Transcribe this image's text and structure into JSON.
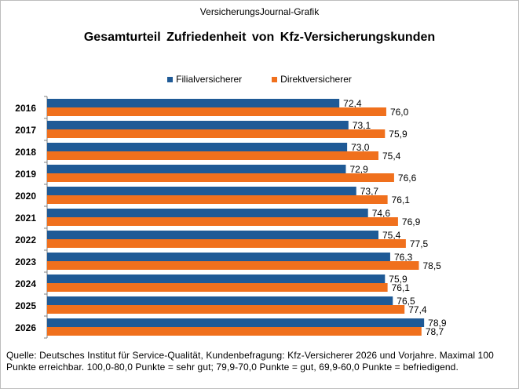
{
  "header": {
    "source_label": "VersicherungsJournal-Grafik",
    "title": "Gesamturteil Zufriedenheit von Kfz-Versicherungskunden"
  },
  "footer": {
    "note": "Quelle: Deutsches Institut für Service-Qualität, Kundenbefragung: Kfz-Versicherer 2026 und Vorjahre. Maximal 100 Punkte erreichbar. 100,0-80,0 Punkte = sehr gut; 79,9-70,0 Punkte = gut, 69,9-60,0 Punkte = befriedigend."
  },
  "colors": {
    "Filialversicherer": "#1f5a96",
    "Direktversicherer": "#f0701d"
  },
  "chart_data": {
    "type": "bar",
    "orientation": "horizontal",
    "title": "Gesamturteil Zufriedenheit von Kfz-Versicherungskunden",
    "categories": [
      "2016",
      "2017",
      "2018",
      "2019",
      "2020",
      "2021",
      "2022",
      "2023",
      "2024",
      "2025",
      "2026"
    ],
    "series": [
      {
        "name": "Filialversicherer",
        "values": [
          72.4,
          73.1,
          73.0,
          72.9,
          73.7,
          74.6,
          75.4,
          76.3,
          75.9,
          76.5,
          78.9
        ],
        "labels": [
          "72,4",
          "73,1",
          "73,0",
          "72,9",
          "73,7",
          "74,6",
          "75,4",
          "76,3",
          "75,9",
          "76,5",
          "78,9"
        ]
      },
      {
        "name": "Direktversicherer",
        "values": [
          76.0,
          75.9,
          75.4,
          76.6,
          76.1,
          76.9,
          77.5,
          78.5,
          76.1,
          77.4,
          78.7
        ],
        "labels": [
          "76,0",
          "75,9",
          "75,4",
          "76,6",
          "76,1",
          "76,9",
          "77,5",
          "78,5",
          "76,1",
          "77,4",
          "78,7"
        ]
      }
    ],
    "xlim": [
      50,
      81.6
    ],
    "legend": "top",
    "grid": false
  }
}
